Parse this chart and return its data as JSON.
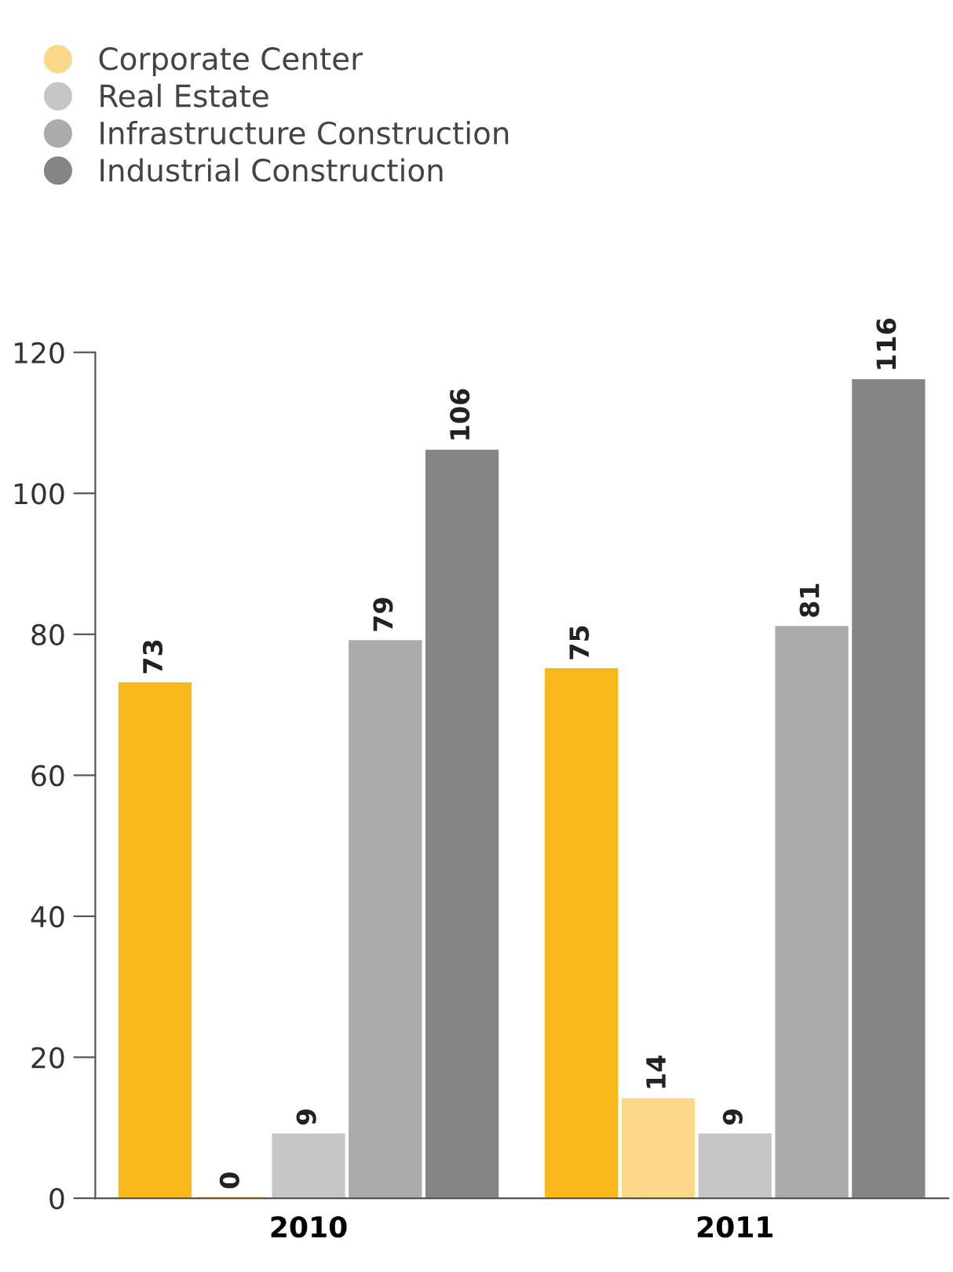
{
  "chart_data": {
    "type": "bar",
    "categories": [
      "2010",
      "2011"
    ],
    "series": [
      {
        "color": "#f9b91a",
        "values": [
          73,
          75
        ]
      },
      {
        "name": "Corporate Center",
        "color": "#fdd888",
        "values": [
          0,
          14
        ]
      },
      {
        "name": "Real Estate",
        "color": "#c6c6c6",
        "values": [
          9,
          9
        ]
      },
      {
        "name": "Infrastructure Construction",
        "color": "#ababab",
        "values": [
          79,
          81
        ]
      },
      {
        "name": "Industrial Construction",
        "color": "#858585",
        "values": [
          106,
          116
        ]
      }
    ],
    "ylim": [
      0,
      120
    ],
    "yticks": [
      0,
      20,
      40,
      60,
      80,
      100,
      120
    ],
    "data_labels": true,
    "grid": false,
    "legend": "top left"
  }
}
